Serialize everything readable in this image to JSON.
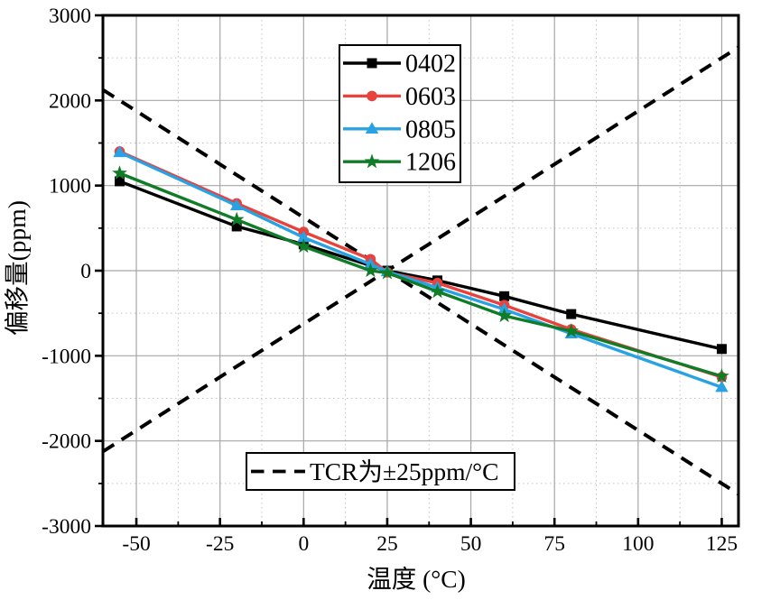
{
  "chart_data": {
    "type": "line",
    "title": "",
    "xlabel": "温度 (°C)",
    "ylabel": "偏移量(ppm)",
    "xlim": [
      -60,
      130
    ],
    "ylim": [
      -3000,
      3000
    ],
    "xticks": [
      -50,
      -25,
      0,
      25,
      50,
      75,
      100,
      125
    ],
    "yticks": [
      -3000,
      -2000,
      -1000,
      0,
      1000,
      2000,
      3000
    ],
    "x_minor_ticks": [
      -37.5,
      -12.5,
      12.5,
      37.5,
      62.5,
      87.5,
      112.5
    ],
    "y_minor_ticks": [
      -2500,
      -1500,
      -500,
      500,
      1500,
      2500
    ],
    "grid": true,
    "x": [
      -55,
      -20,
      0,
      20,
      25,
      40,
      60,
      80,
      125
    ],
    "series": [
      {
        "name": "0402",
        "color": "#000000",
        "marker": "square",
        "values": [
          1050,
          520,
          310,
          60,
          0,
          -115,
          -300,
          -510,
          -920
        ]
      },
      {
        "name": "0603",
        "color": "#e8423c",
        "marker": "circle",
        "values": [
          1400,
          790,
          455,
          135,
          -20,
          -145,
          -405,
          -690,
          -1250
        ]
      },
      {
        "name": "0805",
        "color": "#28a2e3",
        "marker": "triangle",
        "values": [
          1390,
          765,
          390,
          75,
          -10,
          -200,
          -455,
          -740,
          -1370
        ]
      },
      {
        "name": "1206",
        "color": "#107c28",
        "marker": "star",
        "values": [
          1145,
          600,
          285,
          0,
          -25,
          -245,
          -530,
          -710,
          -1240
        ]
      }
    ],
    "reference_lines": {
      "label": "TCR为±25ppm/°C",
      "slopes_ppm_per_degC": [
        25,
        -25
      ],
      "through_point": [
        25,
        0
      ],
      "style": "dashed",
      "color": "#000000"
    },
    "legend": {
      "entries": [
        "0402",
        "0603",
        "0805",
        "1206"
      ],
      "position": "top-center"
    },
    "ref_legend": {
      "label": "TCR为±25ppm/°C",
      "position": "bottom-center"
    }
  }
}
